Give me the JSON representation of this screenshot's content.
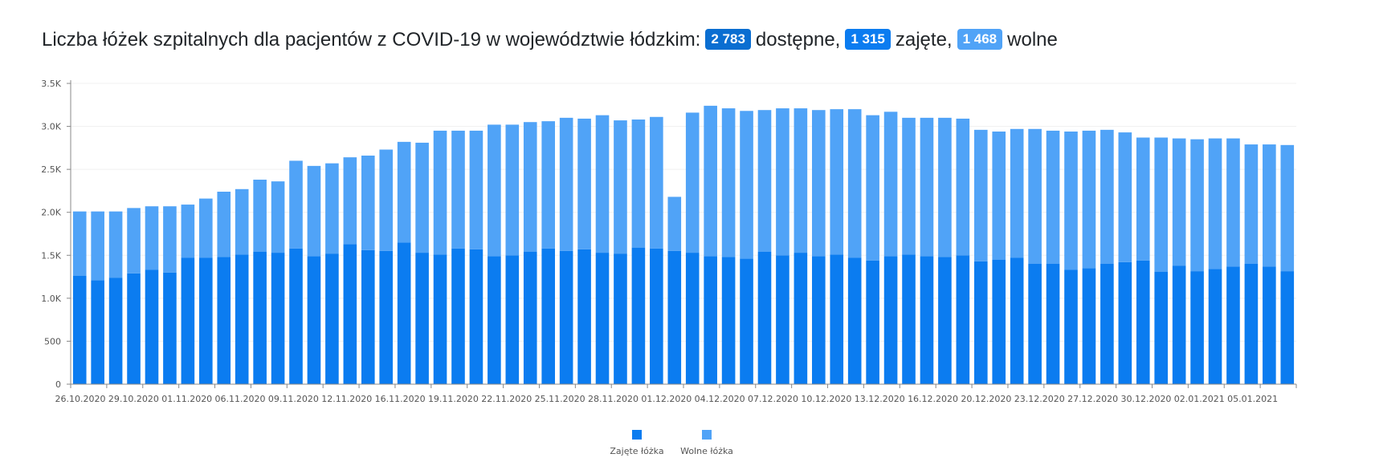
{
  "header": {
    "prefix": "Liczba łóżek szpitalnych dla pacjentów z COVID-19 w województwie łódzkim:",
    "available_value": "2 783",
    "available_label": "dostępne,",
    "occupied_value": "1 315",
    "occupied_label": "zajęte,",
    "free_value": "1 468",
    "free_label": "wolne"
  },
  "colors": {
    "occupied": "#0b7cf0",
    "free": "#50a3f7",
    "badge_available": "#0a6ed1",
    "badge_free": "#50a3f7"
  },
  "legend": {
    "occupied_label": "Zajęte łóżka",
    "free_label": "Wolne łóżka"
  },
  "chart_data": {
    "type": "bar",
    "stacked": true,
    "grid": true,
    "legend_position": "bottom",
    "ylim": [
      0,
      3500
    ],
    "y_ticks": [
      "0",
      "500",
      "1.0K",
      "1.5K",
      "2.0K",
      "2.5K",
      "3.0K",
      "3.5K"
    ],
    "x_tick_labels": [
      "26.10.2020",
      "29.10.2020",
      "01.11.2020",
      "06.11.2020",
      "09.11.2020",
      "12.11.2020",
      "16.11.2020",
      "19.11.2020",
      "22.11.2020",
      "25.11.2020",
      "28.11.2020",
      "01.12.2020",
      "04.12.2020",
      "07.12.2020",
      "10.12.2020",
      "13.12.2020",
      "16.12.2020",
      "20.12.2020",
      "23.12.2020",
      "27.12.2020",
      "30.12.2020",
      "02.01.2021",
      "05.01.2021"
    ],
    "series": [
      {
        "name": "Zajęte łóżka",
        "values": [
          1260,
          1210,
          1240,
          1290,
          1330,
          1300,
          1470,
          1470,
          1480,
          1510,
          1540,
          1530,
          1580,
          1490,
          1520,
          1630,
          1560,
          1550,
          1650,
          1530,
          1510,
          1580,
          1570,
          1490,
          1500,
          1540,
          1580,
          1550,
          1570,
          1530,
          1520,
          1590,
          1580,
          1550,
          1530,
          1490,
          1480,
          1460,
          1540,
          1500,
          1530,
          1490,
          1510,
          1470,
          1440,
          1490,
          1510,
          1490,
          1480,
          1500,
          1430,
          1450,
          1470,
          1400,
          1400,
          1330,
          1350,
          1400,
          1420,
          1440,
          1310,
          1380,
          1315,
          1340,
          1370,
          1400,
          1370,
          1315
        ]
      },
      {
        "name": "Wolne łóżka",
        "values": [
          750,
          800,
          770,
          760,
          740,
          770,
          620,
          690,
          760,
          760,
          840,
          830,
          1020,
          1050,
          1050,
          1010,
          1100,
          1180,
          1170,
          1280,
          1440,
          1370,
          1380,
          1530,
          1520,
          1510,
          1480,
          1550,
          1520,
          1600,
          1550,
          1490,
          1530,
          630,
          1630,
          1750,
          1730,
          1720,
          1650,
          1710,
          1680,
          1700,
          1690,
          1730,
          1690,
          1680,
          1590,
          1610,
          1620,
          1590,
          1530,
          1490,
          1500,
          1570,
          1550,
          1610,
          1600,
          1560,
          1510,
          1430,
          1560,
          1480,
          1535,
          1520,
          1490,
          1390,
          1420,
          1468
        ]
      }
    ]
  }
}
